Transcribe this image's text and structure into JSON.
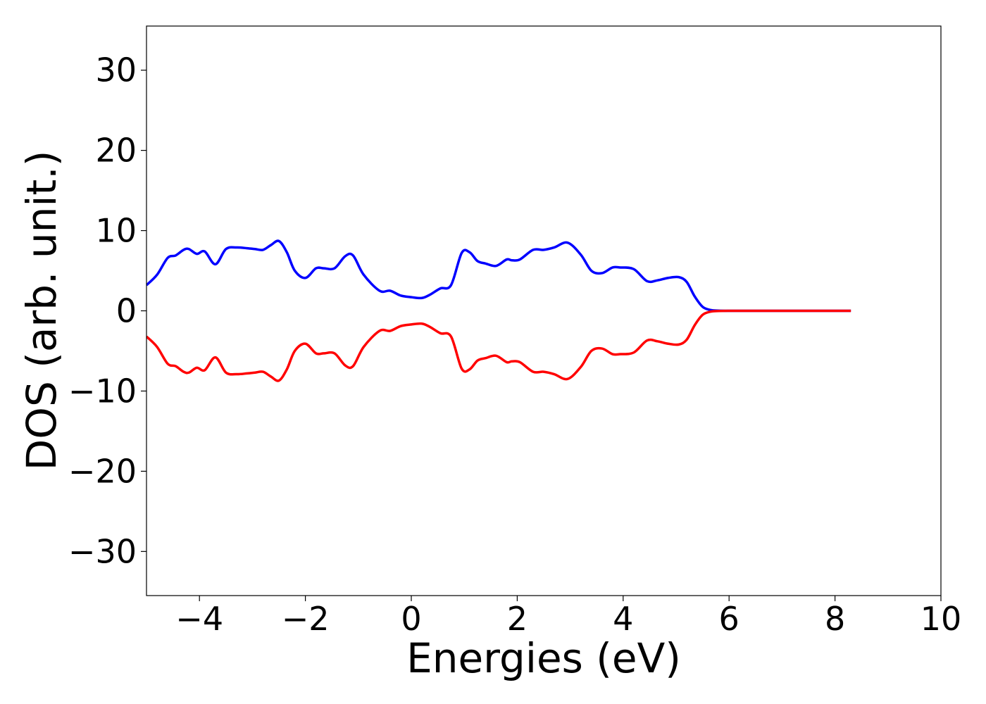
{
  "chart_data": {
    "type": "line",
    "title": "",
    "xlabel": "Energies (eV)",
    "ylabel": "DOS (arb. unit.)",
    "xlim": [
      -5,
      10
    ],
    "ylim": [
      -35.5,
      35.5
    ],
    "xticks": [
      -4,
      -2,
      0,
      2,
      4,
      6,
      8,
      10
    ],
    "xtick_labels": [
      "−4",
      "−2",
      "0",
      "2",
      "4",
      "6",
      "8",
      "10"
    ],
    "yticks": [
      30,
      20,
      10,
      0,
      -10,
      -20,
      -30
    ],
    "ytick_labels": [
      "30",
      "20",
      "10",
      "0",
      "−10",
      "−20",
      "−30"
    ],
    "grid": false,
    "legend": "none",
    "series": [
      {
        "color": "#0000ff",
        "x": [
          -5.0,
          -4.8,
          -4.6,
          -4.45,
          -4.3,
          -4.2,
          -4.05,
          -3.9,
          -3.7,
          -3.5,
          -3.3,
          -3.1,
          -2.95,
          -2.8,
          -2.65,
          -2.5,
          -2.35,
          -2.2,
          -2.0,
          -1.8,
          -1.65,
          -1.45,
          -1.25,
          -1.1,
          -0.9,
          -0.6,
          -0.4,
          -0.2,
          0.0,
          0.2,
          0.35,
          0.55,
          0.75,
          0.95,
          1.1,
          1.25,
          1.4,
          1.6,
          1.8,
          1.9,
          2.05,
          2.3,
          2.5,
          2.7,
          2.95,
          3.2,
          3.4,
          3.6,
          3.8,
          3.95,
          4.2,
          4.45,
          4.65,
          4.85,
          5.05,
          5.2,
          5.35,
          5.5,
          5.65,
          5.8,
          6.0,
          6.5,
          7.0,
          7.5,
          8.0,
          8.3
        ],
        "y": [
          3.2,
          4.5,
          6.6,
          6.9,
          7.6,
          7.7,
          7.1,
          7.4,
          5.8,
          7.7,
          7.9,
          7.8,
          7.7,
          7.6,
          8.2,
          8.7,
          7.3,
          5.0,
          4.1,
          5.3,
          5.3,
          5.3,
          6.8,
          6.9,
          4.5,
          2.5,
          2.5,
          1.9,
          1.7,
          1.6,
          2.0,
          2.8,
          3.2,
          7.2,
          7.3,
          6.2,
          5.9,
          5.6,
          6.4,
          6.3,
          6.4,
          7.6,
          7.6,
          7.9,
          8.5,
          7.0,
          5.0,
          4.7,
          5.4,
          5.4,
          5.2,
          3.7,
          3.8,
          4.1,
          4.2,
          3.6,
          1.8,
          0.5,
          0.1,
          0.02,
          0.0,
          0.0,
          0.0,
          0.0,
          0.0,
          0.0
        ]
      },
      {
        "color": "#ff0000",
        "x": [
          -5.0,
          -4.8,
          -4.6,
          -4.45,
          -4.3,
          -4.2,
          -4.05,
          -3.9,
          -3.7,
          -3.5,
          -3.3,
          -3.1,
          -2.95,
          -2.8,
          -2.65,
          -2.5,
          -2.35,
          -2.2,
          -2.0,
          -1.8,
          -1.65,
          -1.45,
          -1.25,
          -1.1,
          -0.9,
          -0.6,
          -0.4,
          -0.2,
          0.0,
          0.2,
          0.35,
          0.55,
          0.75,
          0.95,
          1.1,
          1.25,
          1.4,
          1.6,
          1.8,
          1.9,
          2.05,
          2.3,
          2.5,
          2.7,
          2.95,
          3.2,
          3.4,
          3.6,
          3.8,
          3.95,
          4.2,
          4.45,
          4.65,
          4.85,
          5.05,
          5.2,
          5.35,
          5.5,
          5.65,
          5.8,
          6.0,
          6.5,
          7.0,
          7.5,
          8.0,
          8.3
        ],
        "y": [
          -3.2,
          -4.5,
          -6.6,
          -6.9,
          -7.6,
          -7.7,
          -7.1,
          -7.4,
          -5.8,
          -7.7,
          -7.9,
          -7.8,
          -7.7,
          -7.6,
          -8.2,
          -8.7,
          -7.3,
          -5.0,
          -4.1,
          -5.3,
          -5.3,
          -5.3,
          -6.8,
          -6.9,
          -4.5,
          -2.5,
          -2.5,
          -1.9,
          -1.7,
          -1.6,
          -2.0,
          -2.8,
          -3.2,
          -7.2,
          -7.3,
          -6.2,
          -5.9,
          -5.6,
          -6.4,
          -6.3,
          -6.4,
          -7.6,
          -7.6,
          -7.9,
          -8.5,
          -7.0,
          -5.0,
          -4.7,
          -5.4,
          -5.4,
          -5.2,
          -3.7,
          -3.8,
          -4.1,
          -4.2,
          -3.6,
          -1.8,
          -0.5,
          -0.1,
          -0.02,
          0.0,
          0.0,
          0.0,
          0.0,
          0.0,
          0.0
        ]
      }
    ]
  }
}
